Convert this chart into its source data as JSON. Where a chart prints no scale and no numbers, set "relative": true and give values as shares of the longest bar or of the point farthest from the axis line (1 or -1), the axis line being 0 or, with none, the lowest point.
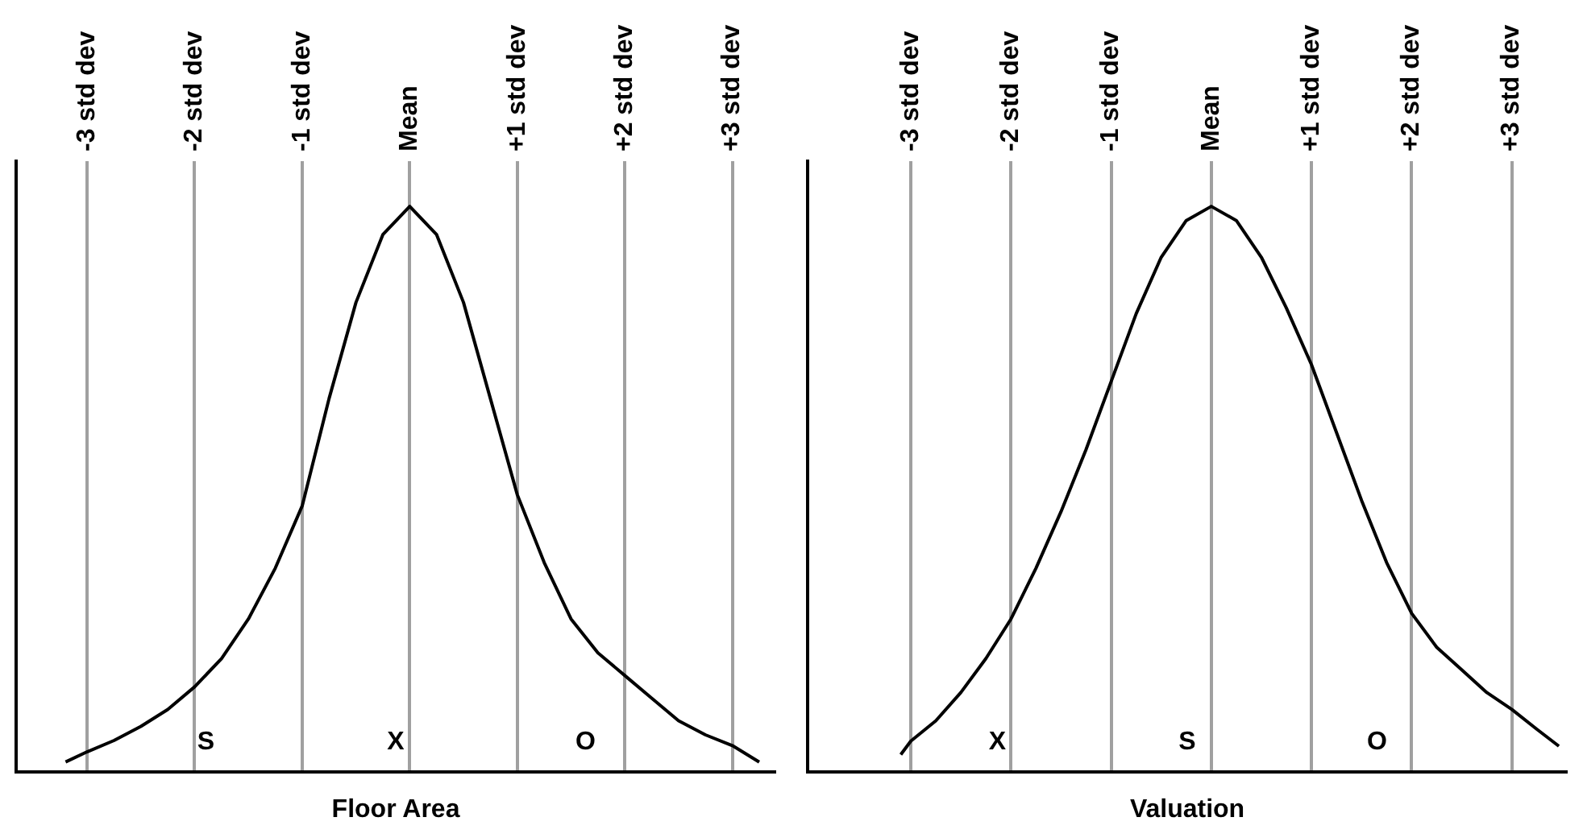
{
  "chart_data": [
    {
      "type": "line",
      "xlabel": "Floor Area",
      "relative": true,
      "xlim": [
        -3.66,
        3.4
      ],
      "tick_labels": "x",
      "grid": "x",
      "legend": false,
      "marker": "none",
      "line_style": "solid",
      "xticks": [
        {
          "value": -3,
          "label": "-3 std dev"
        },
        {
          "value": -2,
          "label": "-2 std dev"
        },
        {
          "value": -1,
          "label": "-1 std dev"
        },
        {
          "value": 0,
          "label": "Mean"
        },
        {
          "value": 1,
          "label": "+1 std dev"
        },
        {
          "value": 2,
          "label": "+2 std dev"
        },
        {
          "value": 3,
          "label": "+3 std dev"
        }
      ],
      "series": [
        {
          "color": "#000000",
          "x": [
            -3.2,
            -3,
            -2.75,
            -2.5,
            -2.25,
            -2,
            -1.75,
            -1.5,
            -1.25,
            -1,
            -0.75,
            -0.5,
            -0.25,
            0,
            0.25,
            0.5,
            0.75,
            1,
            1.25,
            1.5,
            1.75,
            2,
            2.25,
            2.5,
            2.75,
            3,
            3.25
          ],
          "values": [
            0.017,
            0.035,
            0.055,
            0.08,
            0.11,
            0.15,
            0.2,
            0.27,
            0.36,
            0.47,
            0.66,
            0.83,
            0.95,
            1,
            0.95,
            0.83,
            0.66,
            0.49,
            0.37,
            0.27,
            0.21,
            0.17,
            0.13,
            0.09,
            0.065,
            0.046,
            0.017
          ]
        }
      ],
      "annotations": [
        "S",
        "X",
        "O"
      ]
    },
    {
      "type": "line",
      "xlabel": "Valuation",
      "relative": true,
      "xlim": [
        -4.03,
        3.55
      ],
      "tick_labels": "x",
      "grid": "x",
      "legend": false,
      "marker": "none",
      "line_style": "solid",
      "xticks": [
        {
          "value": -3,
          "label": "-3 std dev"
        },
        {
          "value": -2,
          "label": "-2 std dev"
        },
        {
          "value": -1,
          "label": "-1 std dev"
        },
        {
          "value": 0,
          "label": "Mean"
        },
        {
          "value": 1,
          "label": "+1 std dev"
        },
        {
          "value": 2,
          "label": "+2 std dev"
        },
        {
          "value": 3,
          "label": "+3 std dev"
        }
      ],
      "series": [
        {
          "color": "#000000",
          "x": [
            -3.1,
            -3,
            -2.75,
            -2.5,
            -2.25,
            -2,
            -1.75,
            -1.5,
            -1.25,
            -1,
            -0.75,
            -0.5,
            -0.25,
            0,
            0.25,
            0.5,
            0.75,
            1,
            1.25,
            1.5,
            1.75,
            2,
            2.25,
            2.5,
            2.75,
            3,
            3.25,
            3.47
          ],
          "values": [
            0.03,
            0.054,
            0.09,
            0.14,
            0.2,
            0.27,
            0.36,
            0.46,
            0.57,
            0.69,
            0.81,
            0.91,
            0.975,
            1,
            0.975,
            0.91,
            0.82,
            0.72,
            0.6,
            0.48,
            0.37,
            0.28,
            0.22,
            0.18,
            0.14,
            0.11,
            0.075,
            0.045
          ]
        }
      ],
      "annotations": [
        "X",
        "S",
        "O"
      ]
    }
  ]
}
